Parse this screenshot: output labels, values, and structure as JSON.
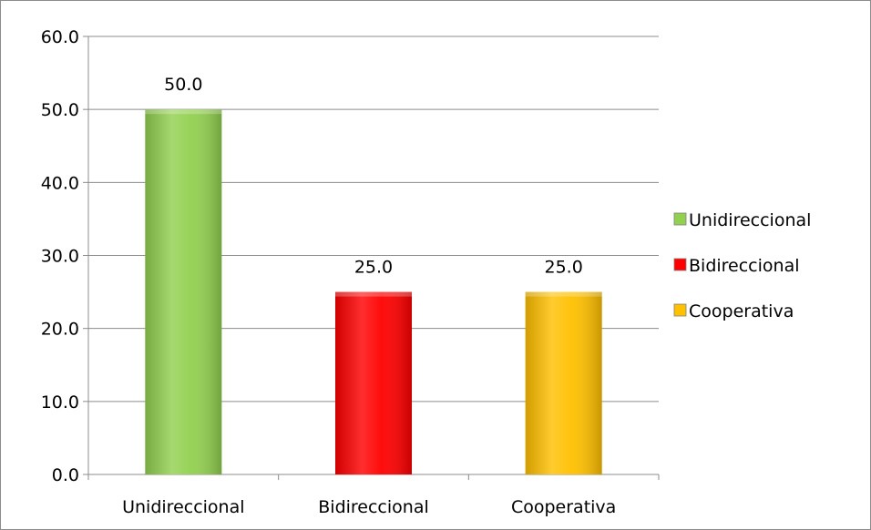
{
  "chart_data": {
    "type": "bar",
    "categories": [
      "Unidireccional",
      "Bidireccional",
      "Cooperativa"
    ],
    "values": [
      50.0,
      25.0,
      25.0
    ],
    "data_labels": [
      "50.0",
      "25.0",
      "25.0"
    ],
    "colors": [
      "#92d050",
      "#ff0000",
      "#ffc000"
    ],
    "title": "",
    "xlabel": "",
    "ylabel": "",
    "ylim": [
      0,
      60
    ],
    "y_ticks": [
      "0.0",
      "10.0",
      "20.0",
      "30.0",
      "40.0",
      "50.0",
      "60.0"
    ],
    "grid": true,
    "legend": {
      "position": "right",
      "entries": [
        "Unidireccional",
        "Bidireccional",
        "Cooperativa"
      ]
    }
  }
}
